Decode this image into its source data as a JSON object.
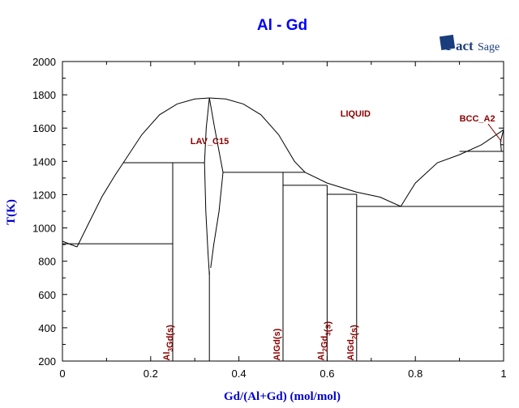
{
  "chart_data": {
    "type": "line",
    "title": "Al - Gd",
    "xlabel": "Gd/(Al+Gd) (mol/mol)",
    "ylabel": "T(K)",
    "xlim": [
      0,
      1
    ],
    "ylim": [
      200,
      2000
    ],
    "x_ticks": [
      "0",
      "0.2",
      "0.4",
      "0.6",
      "0.8",
      "1"
    ],
    "y_ticks": [
      "200",
      "400",
      "600",
      "800",
      "1000",
      "1200",
      "1400",
      "1600",
      "1800",
      "2000"
    ],
    "grid": false,
    "line_color": "#000000",
    "label_color": "#8b0000",
    "title_color": "#0000ff",
    "curves": [
      {
        "id": "liquidus-al-side",
        "points": [
          [
            0,
            920
          ],
          [
            0.033,
            886
          ]
        ]
      },
      {
        "id": "liquidus-al3gd",
        "points": [
          [
            0.033,
            886
          ],
          [
            0.06,
            1030
          ],
          [
            0.09,
            1190
          ],
          [
            0.12,
            1320
          ],
          [
            0.138,
            1392
          ],
          [
            0.18,
            1560
          ],
          [
            0.22,
            1680
          ],
          [
            0.26,
            1745
          ],
          [
            0.3,
            1775
          ],
          [
            0.333,
            1781
          ]
        ]
      },
      {
        "id": "liquidus-lav-right",
        "points": [
          [
            0.333,
            1781
          ],
          [
            0.37,
            1775
          ],
          [
            0.41,
            1745
          ],
          [
            0.45,
            1680
          ],
          [
            0.49,
            1560
          ],
          [
            0.526,
            1400
          ],
          [
            0.55,
            1334
          ]
        ]
      },
      {
        "id": "liquidus-mid",
        "points": [
          [
            0.55,
            1334
          ],
          [
            0.6,
            1270
          ],
          [
            0.667,
            1215
          ],
          [
            0.72,
            1185
          ],
          [
            0.767,
            1129
          ]
        ]
      },
      {
        "id": "liquidus-gd-side",
        "points": [
          [
            0.767,
            1129
          ],
          [
            0.8,
            1270
          ],
          [
            0.85,
            1392
          ],
          [
            0.9,
            1440
          ],
          [
            0.95,
            1500
          ],
          [
            1,
            1590
          ]
        ]
      },
      {
        "id": "lav-left",
        "points": [
          [
            0.333,
            1781
          ],
          [
            0.326,
            1600
          ],
          [
            0.322,
            1392
          ],
          [
            0.325,
            1100
          ],
          [
            0.33,
            850
          ],
          [
            0.333,
            720
          ]
        ]
      },
      {
        "id": "lav-right",
        "points": [
          [
            0.333,
            1781
          ],
          [
            0.345,
            1600
          ],
          [
            0.364,
            1334
          ],
          [
            0.355,
            1100
          ],
          [
            0.343,
            900
          ],
          [
            0.336,
            760
          ]
        ]
      },
      {
        "id": "bcc-lens",
        "points": [
          [
            0.995,
            1460
          ],
          [
            0.993,
            1520
          ],
          [
            1,
            1590
          ]
        ]
      },
      {
        "id": "eutectic-al",
        "points": [
          [
            0,
            905
          ],
          [
            0.25,
            905
          ]
        ]
      },
      {
        "id": "peritectic-al3gd",
        "points": [
          [
            0.138,
            1392
          ],
          [
            0.322,
            1392
          ]
        ]
      },
      {
        "id": "peritectic-algd",
        "points": [
          [
            0.364,
            1334
          ],
          [
            0.55,
            1334
          ]
        ]
      },
      {
        "id": "peritectic-al2gd3",
        "points": [
          [
            0.5,
            1256
          ],
          [
            0.6,
            1256
          ]
        ]
      },
      {
        "id": "peritectic-algd2",
        "points": [
          [
            0.6,
            1202
          ],
          [
            0.667,
            1202
          ]
        ]
      },
      {
        "id": "eutectic-gd",
        "points": [
          [
            0.667,
            1129
          ],
          [
            1,
            1129
          ]
        ]
      },
      {
        "id": "bcc-transition",
        "points": [
          [
            0.9,
            1460
          ],
          [
            1,
            1460
          ]
        ]
      },
      {
        "id": "al3gd-line",
        "points": [
          [
            0.25,
            200
          ],
          [
            0.25,
            1392
          ]
        ]
      },
      {
        "id": "laves-line",
        "points": [
          [
            0.333,
            200
          ],
          [
            0.333,
            740
          ]
        ]
      },
      {
        "id": "algd-line",
        "points": [
          [
            0.5,
            200
          ],
          [
            0.5,
            1334
          ]
        ]
      },
      {
        "id": "al2gd3-line",
        "points": [
          [
            0.6,
            200
          ],
          [
            0.6,
            1256
          ]
        ]
      },
      {
        "id": "algd2-line",
        "points": [
          [
            0.667,
            200
          ],
          [
            0.667,
            1202
          ]
        ]
      }
    ],
    "annotations": [
      {
        "text": "LIQUID",
        "x": 0.63,
        "T": 1670
      },
      {
        "text": "LAV_C15",
        "x": 0.29,
        "T": 1505
      },
      {
        "text": "BCC_A2",
        "x": 0.9,
        "T": 1640
      }
    ],
    "compound_labels": [
      {
        "base": "Al",
        "sub": "3",
        "rest": "Gd(s)",
        "x": 0.25
      },
      {
        "base": "AlGd(s)",
        "sub": "",
        "rest": "",
        "x": 0.5
      },
      {
        "base": "Al",
        "sub": "2",
        "rest": "Gd",
        "sub2": "3",
        "rest2": "(s)",
        "x": 0.6
      },
      {
        "base": "AlGd",
        "sub": "2",
        "rest": "(s)",
        "x": 0.667
      }
    ]
  },
  "logo": {
    "text": "FactSage"
  }
}
